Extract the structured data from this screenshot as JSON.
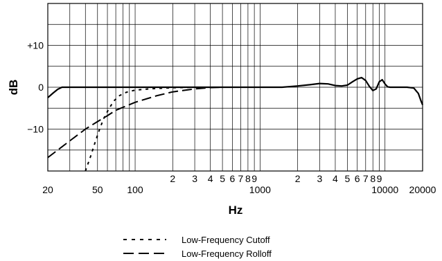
{
  "chart_data": {
    "type": "line",
    "xscale": "log",
    "xlim": [
      20,
      20000
    ],
    "ylim": [
      -20,
      20
    ],
    "xlabel": "Hz",
    "ylabel": "dB",
    "grid": true,
    "y_ticks": [
      {
        "value": 10,
        "label": "+10"
      },
      {
        "value": 0,
        "label": "0"
      },
      {
        "value": -10,
        "label": "−10"
      }
    ],
    "x_ticks_major": [
      {
        "value": 20,
        "label": "20"
      },
      {
        "value": 50,
        "label": "50"
      },
      {
        "value": 100,
        "label": "100"
      },
      {
        "value": 1000,
        "label": "1000"
      },
      {
        "value": 10000,
        "label": "10000"
      },
      {
        "value": 20000,
        "label": "20000"
      }
    ],
    "x_ticks_minor": [
      {
        "value": 200,
        "label": "2"
      },
      {
        "value": 300,
        "label": "3"
      },
      {
        "value": 400,
        "label": "4"
      },
      {
        "value": 500,
        "label": "5"
      },
      {
        "value": 600,
        "label": "6"
      },
      {
        "value": 700,
        "label": "7"
      },
      {
        "value": 800,
        "label": "8"
      },
      {
        "value": 900,
        "label": "9"
      },
      {
        "value": 2000,
        "label": "2"
      },
      {
        "value": 3000,
        "label": "3"
      },
      {
        "value": 4000,
        "label": "4"
      },
      {
        "value": 5000,
        "label": "5"
      },
      {
        "value": 6000,
        "label": "6"
      },
      {
        "value": 7000,
        "label": "7"
      },
      {
        "value": 8000,
        "label": "8"
      },
      {
        "value": 9000,
        "label": "9"
      }
    ],
    "series": [
      {
        "style": "solid",
        "x": [
          20,
          22,
          24,
          26,
          30,
          50,
          100,
          200,
          500,
          1000,
          1500,
          2000,
          2500,
          3000,
          3500,
          4000,
          4500,
          5000,
          5500,
          6000,
          6500,
          7000,
          7500,
          8000,
          8500,
          9000,
          9500,
          10000,
          10500,
          11000,
          12000,
          13000,
          15000,
          17000,
          18500,
          19500,
          20000
        ],
        "y": [
          -2.5,
          -1.4,
          -0.5,
          0,
          0,
          0,
          0,
          0,
          0,
          0,
          0,
          0.3,
          0.6,
          0.9,
          0.8,
          0.4,
          0.3,
          0.5,
          1.3,
          2.0,
          2.3,
          1.6,
          0.2,
          -0.8,
          -0.4,
          1.3,
          1.8,
          0.8,
          0.1,
          0,
          0,
          0,
          0,
          -0.2,
          -1.5,
          -3.4,
          -4.2
        ]
      },
      {
        "name": "Low-Frequency Cutoff",
        "style": "short-dash",
        "x": [
          40,
          44,
          48,
          52,
          56,
          62,
          68,
          75,
          85,
          100,
          130,
          170,
          220,
          300,
          400,
          500
        ],
        "y": [
          -20,
          -16.5,
          -13,
          -10,
          -7.5,
          -5,
          -3.2,
          -2,
          -1.2,
          -0.7,
          -0.4,
          -0.2,
          -0.1,
          0,
          0,
          0
        ]
      },
      {
        "name": "Low-Frequency Rolloff",
        "style": "long-dash",
        "x": [
          20,
          25,
          30,
          40,
          50,
          60,
          70,
          100,
          150,
          200,
          300,
          400,
          500
        ],
        "y": [
          -16.8,
          -14.6,
          -12.8,
          -10,
          -8.2,
          -6.8,
          -5.5,
          -3.6,
          -2,
          -1.1,
          -0.4,
          -0.1,
          0
        ]
      }
    ]
  }
}
